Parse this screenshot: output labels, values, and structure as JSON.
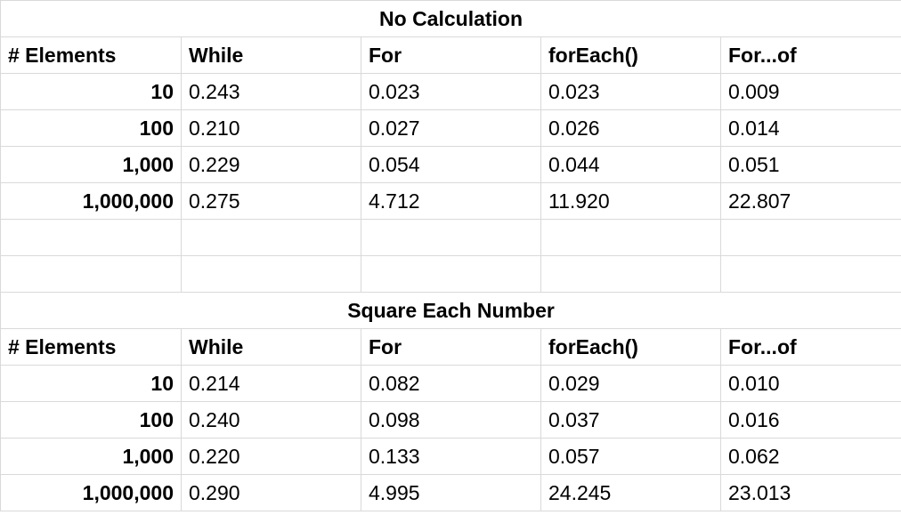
{
  "sections": [
    {
      "title": "No Calculation",
      "headers": [
        "# Elements",
        "While",
        "For",
        "forEach()",
        "For...of"
      ],
      "rows": [
        {
          "label": "10",
          "values": [
            "0.243",
            "0.023",
            "0.023",
            "0.009"
          ]
        },
        {
          "label": "100",
          "values": [
            "0.210",
            "0.027",
            "0.026",
            "0.014"
          ]
        },
        {
          "label": "1,000",
          "values": [
            "0.229",
            "0.054",
            "0.044",
            "0.051"
          ]
        },
        {
          "label": "1,000,000",
          "values": [
            "0.275",
            "4.712",
            "11.920",
            "22.807"
          ]
        }
      ]
    },
    {
      "title": "Square Each Number",
      "headers": [
        "# Elements",
        "While",
        "For",
        "forEach()",
        "For...of"
      ],
      "rows": [
        {
          "label": "10",
          "values": [
            "0.214",
            "0.082",
            "0.029",
            "0.010"
          ]
        },
        {
          "label": "100",
          "values": [
            "0.240",
            "0.098",
            "0.037",
            "0.016"
          ]
        },
        {
          "label": "1,000",
          "values": [
            "0.220",
            "0.133",
            "0.057",
            "0.062"
          ]
        },
        {
          "label": "1,000,000",
          "values": [
            "0.290",
            "4.995",
            "24.245",
            "23.013"
          ]
        }
      ]
    }
  ]
}
